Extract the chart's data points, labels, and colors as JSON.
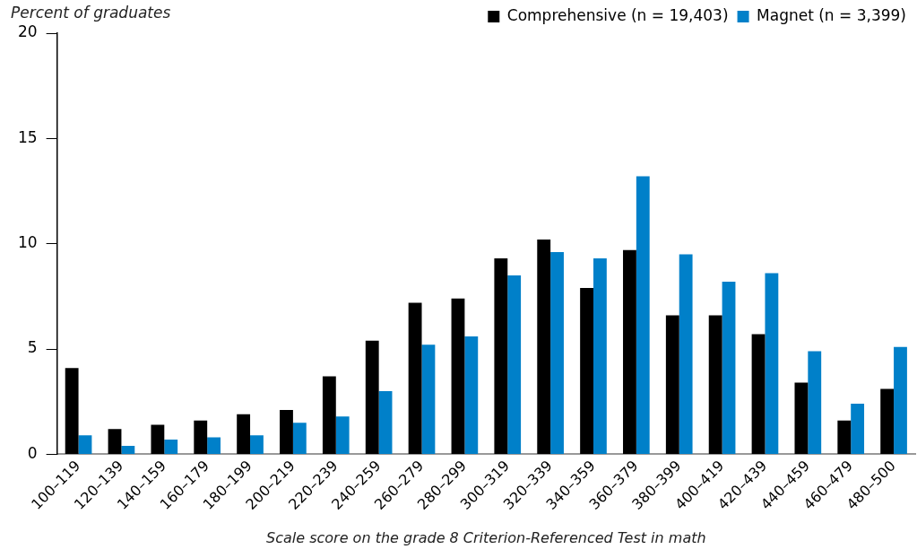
{
  "chart_data": {
    "type": "bar",
    "ylabel": "Percent of graduates",
    "xlabel": "Scale score on the grade 8 Criterion-Referenced Test in math",
    "categories": [
      "100–119",
      "120–139",
      "140–159",
      "160–179",
      "180–199",
      "200–219",
      "220–239",
      "240–259",
      "260–279",
      "280–299",
      "300–319",
      "320–339",
      "340–359",
      "360–379",
      "380–399",
      "400–419",
      "420–439",
      "440–459",
      "460–479",
      "480–500"
    ],
    "series": [
      {
        "name": "Comprehensive (n = 19,403)",
        "color": "#000000",
        "values": [
          4.1,
          1.2,
          1.4,
          1.6,
          1.9,
          2.1,
          3.7,
          5.4,
          7.2,
          7.4,
          9.3,
          10.2,
          7.9,
          9.7,
          6.6,
          6.6,
          5.7,
          3.4,
          1.6,
          3.1
        ]
      },
      {
        "name": "Magnet (n = 3,399)",
        "color": "#0080c9",
        "values": [
          0.9,
          0.4,
          0.7,
          0.8,
          0.9,
          1.5,
          1.8,
          3.0,
          5.2,
          5.6,
          8.5,
          9.6,
          9.3,
          13.2,
          9.5,
          8.2,
          8.6,
          4.9,
          2.4,
          5.1
        ]
      }
    ],
    "ylim": [
      0,
      20
    ],
    "yticks": [
      0,
      5,
      10,
      15,
      20
    ],
    "grid": false,
    "legend": "top right"
  }
}
